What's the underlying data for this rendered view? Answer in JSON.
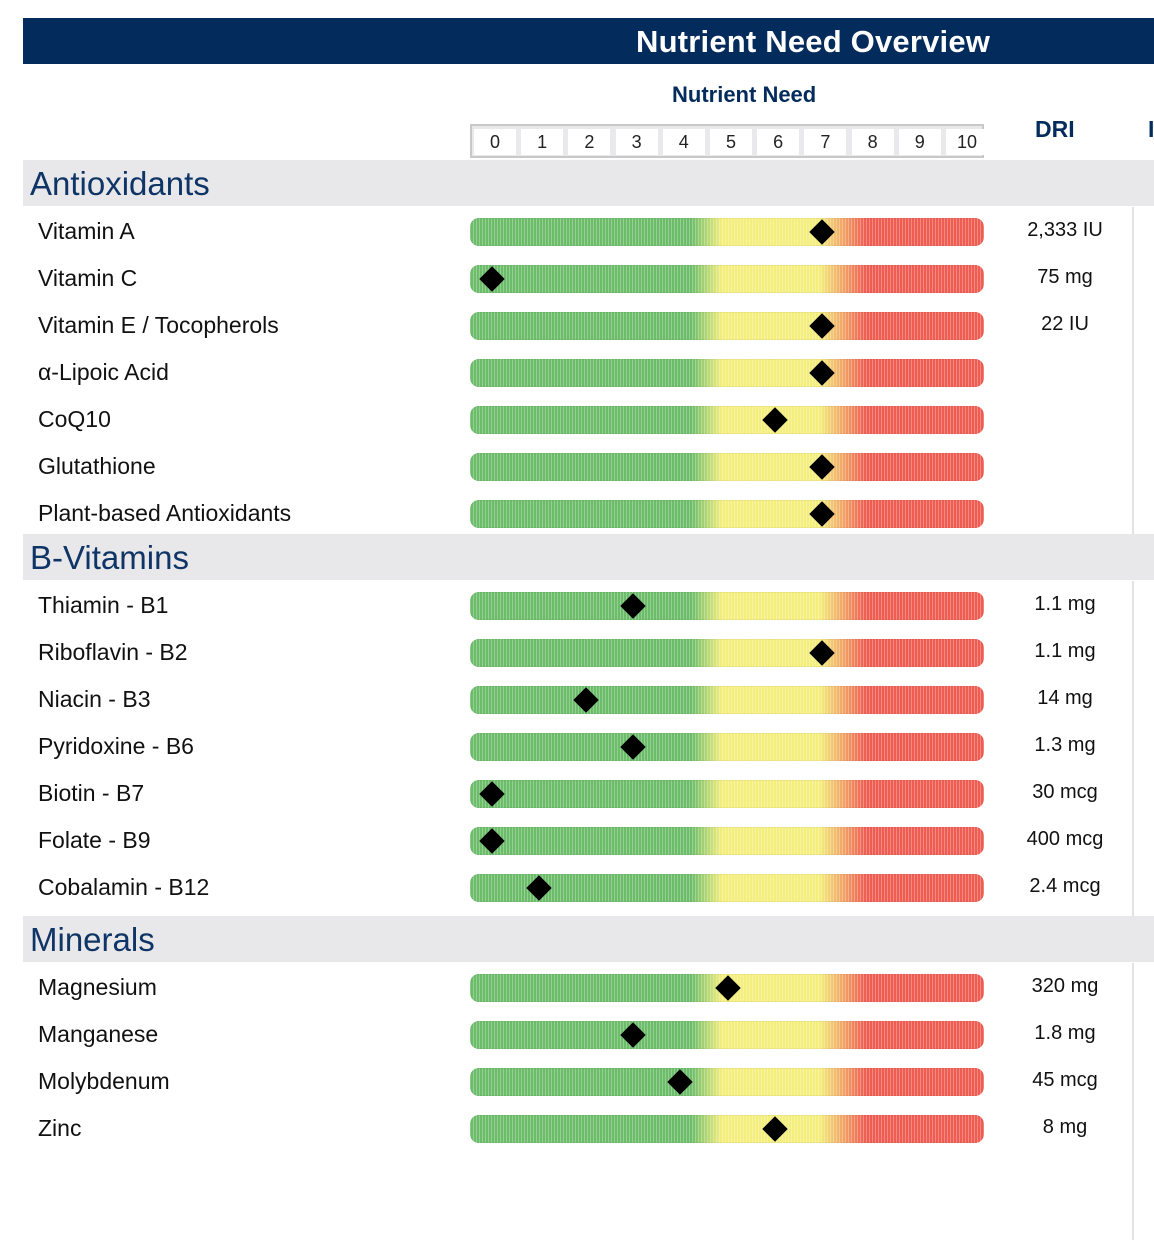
{
  "title": "Nutrient Need Overview",
  "scale": {
    "label": "Nutrient Need",
    "ticks": [
      "0",
      "1",
      "2",
      "3",
      "4",
      "5",
      "6",
      "7",
      "8",
      "9",
      "10"
    ]
  },
  "columns": {
    "dri": "DRI",
    "cut": "I"
  },
  "sections": [
    {
      "title": "Antioxidants",
      "rows": [
        {
          "label": "Vitamin A",
          "value": 7,
          "dri": "2,333 IU"
        },
        {
          "label": "Vitamin C",
          "value": 0,
          "dri": "75 mg"
        },
        {
          "label": "Vitamin E / Tocopherols",
          "value": 7,
          "dri": "22 IU"
        },
        {
          "label": "α-Lipoic Acid",
          "value": 7,
          "dri": ""
        },
        {
          "label": "CoQ10",
          "value": 6,
          "dri": ""
        },
        {
          "label": "Glutathione",
          "value": 7,
          "dri": ""
        },
        {
          "label": "Plant-based Antioxidants",
          "value": 7,
          "dri": ""
        }
      ]
    },
    {
      "title": "B-Vitamins",
      "rows": [
        {
          "label": "Thiamin - B1",
          "value": 3,
          "dri": "1.1 mg"
        },
        {
          "label": "Riboflavin - B2",
          "value": 7,
          "dri": "1.1 mg"
        },
        {
          "label": "Niacin - B3",
          "value": 2,
          "dri": "14 mg"
        },
        {
          "label": "Pyridoxine - B6",
          "value": 3,
          "dri": "1.3 mg"
        },
        {
          "label": "Biotin - B7",
          "value": 0,
          "dri": "30 mcg"
        },
        {
          "label": "Folate - B9",
          "value": 0,
          "dri": "400 mcg"
        },
        {
          "label": "Cobalamin - B12",
          "value": 1,
          "dri": "2.4 mcg"
        }
      ]
    },
    {
      "title": "Minerals",
      "rows": [
        {
          "label": "Magnesium",
          "value": 5,
          "dri": "320 mg"
        },
        {
          "label": "Manganese",
          "value": 3,
          "dri": "1.8 mg"
        },
        {
          "label": "Molybdenum",
          "value": 4,
          "dri": "45 mcg"
        },
        {
          "label": "Zinc",
          "value": 6,
          "dri": "8 mg"
        }
      ]
    }
  ]
}
